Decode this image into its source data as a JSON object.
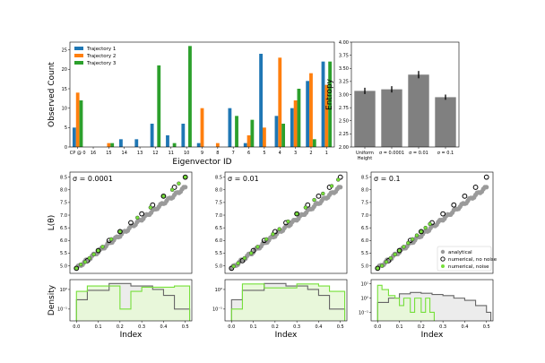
{
  "chart_data": [
    {
      "id": "bar-top",
      "type": "bar",
      "categories": [
        "CP @ 0",
        "16",
        "15",
        "14",
        "13",
        "12",
        "11",
        "10",
        "9",
        "8",
        "7",
        "6",
        "5",
        "4",
        "3",
        "2",
        "1"
      ],
      "series": [
        {
          "name": "Trajectory 1",
          "color": "#1f77b4",
          "values": [
            5,
            0,
            0,
            2,
            2,
            6,
            3,
            6,
            1,
            0,
            10,
            1,
            24,
            8,
            10,
            17,
            22
          ]
        },
        {
          "name": "Trajectory 2",
          "color": "#ff7f0e",
          "values": [
            14,
            0,
            1,
            0,
            0,
            0,
            0,
            0,
            10,
            1,
            0,
            3,
            5,
            23,
            12,
            19,
            16
          ]
        },
        {
          "name": "Trajectory 3",
          "color": "#2ca02c",
          "values": [
            12,
            0,
            1,
            0,
            0,
            21,
            1,
            26,
            0,
            0,
            8,
            7,
            0,
            6,
            15,
            2,
            22
          ]
        }
      ],
      "ylabel": "Observed Count",
      "xlabel": "Eigenvector ID",
      "ylim": [
        0,
        27
      ],
      "yticks": [
        0,
        5,
        10,
        15,
        20,
        25
      ],
      "legend": "top-left"
    },
    {
      "id": "bar-entropy",
      "type": "bar",
      "categories": [
        "Uniform\nHeight",
        "σ = 0.0001",
        "σ = 0.01",
        "σ = 0.1"
      ],
      "values": [
        3.07,
        3.1,
        3.38,
        2.95
      ],
      "errors": [
        0.06,
        0.06,
        0.07,
        0.05
      ],
      "color": "#808080",
      "ylabel": "Entropy",
      "ylim": [
        2.0,
        4.0
      ],
      "yticks": [
        "2.00",
        "2.25",
        "2.50",
        "2.75",
        "3.00",
        "3.25",
        "3.50",
        "3.75",
        "4.00"
      ]
    },
    {
      "id": "scatter-1",
      "type": "scatter",
      "annotation": "σ = 0.0001",
      "ylabel": "L(θ)",
      "xlim": [
        -0.03,
        0.53
      ],
      "ylim": [
        4.7,
        8.7
      ],
      "yticks": [
        "5.0",
        "5.5",
        "6.0",
        "6.5",
        "7.0",
        "7.5",
        "8.0",
        "8.5"
      ],
      "numerical_no_noise": [
        [
          0.0,
          4.9
        ],
        [
          0.05,
          5.2
        ],
        [
          0.1,
          5.6
        ],
        [
          0.15,
          6.0
        ],
        [
          0.2,
          6.35
        ],
        [
          0.25,
          6.7
        ],
        [
          0.3,
          7.05
        ],
        [
          0.35,
          7.4
        ],
        [
          0.4,
          7.75
        ],
        [
          0.45,
          8.1
        ],
        [
          0.5,
          8.5
        ]
      ],
      "numerical_noise": [
        [
          0.0,
          4.9
        ],
        [
          0.02,
          5.05
        ],
        [
          0.04,
          5.15
        ],
        [
          0.06,
          5.3
        ],
        [
          0.08,
          5.45
        ],
        [
          0.1,
          5.6
        ],
        [
          0.12,
          5.75
        ],
        [
          0.16,
          6.05
        ],
        [
          0.2,
          6.35
        ],
        [
          0.28,
          6.9
        ],
        [
          0.34,
          7.3
        ],
        [
          0.4,
          7.75
        ],
        [
          0.44,
          8.0
        ],
        [
          0.47,
          8.25
        ],
        [
          0.5,
          8.5
        ]
      ]
    },
    {
      "id": "scatter-2",
      "type": "scatter",
      "annotation": "σ = 0.01",
      "xlim": [
        -0.03,
        0.53
      ],
      "ylim": [
        4.7,
        8.7
      ],
      "yticks": [
        "5.0",
        "5.5",
        "6.0",
        "6.5",
        "7.0",
        "7.5",
        "8.0",
        "8.5"
      ],
      "numerical_no_noise": [
        [
          0.0,
          4.9
        ],
        [
          0.05,
          5.2
        ],
        [
          0.1,
          5.6
        ],
        [
          0.15,
          6.0
        ],
        [
          0.2,
          6.35
        ],
        [
          0.25,
          6.7
        ],
        [
          0.3,
          7.05
        ],
        [
          0.35,
          7.4
        ],
        [
          0.4,
          7.75
        ],
        [
          0.45,
          8.1
        ],
        [
          0.5,
          8.5
        ]
      ],
      "numerical_noise": [
        [
          0.01,
          4.98
        ],
        [
          0.03,
          5.1
        ],
        [
          0.06,
          5.3
        ],
        [
          0.09,
          5.5
        ],
        [
          0.12,
          5.75
        ],
        [
          0.16,
          6.05
        ],
        [
          0.19,
          6.25
        ],
        [
          0.22,
          6.45
        ],
        [
          0.26,
          6.75
        ],
        [
          0.3,
          7.05
        ],
        [
          0.34,
          7.3
        ],
        [
          0.38,
          7.6
        ],
        [
          0.42,
          7.85
        ],
        [
          0.46,
          8.15
        ],
        [
          0.49,
          8.4
        ]
      ]
    },
    {
      "id": "scatter-3",
      "type": "scatter",
      "annotation": "σ = 0.1",
      "xlim": [
        -0.03,
        0.53
      ],
      "ylim": [
        4.7,
        8.7
      ],
      "yticks": [
        "5.0",
        "5.5",
        "6.0",
        "6.5",
        "7.0",
        "7.5",
        "8.0",
        "8.5"
      ],
      "numerical_no_noise": [
        [
          0.0,
          4.9
        ],
        [
          0.05,
          5.2
        ],
        [
          0.1,
          5.6
        ],
        [
          0.15,
          6.0
        ],
        [
          0.2,
          6.35
        ],
        [
          0.25,
          6.7
        ],
        [
          0.3,
          7.05
        ],
        [
          0.35,
          7.4
        ],
        [
          0.4,
          7.75
        ],
        [
          0.45,
          8.1
        ],
        [
          0.5,
          8.5
        ]
      ],
      "numerical_noise": [
        [
          0.0,
          4.9
        ],
        [
          0.02,
          5.0
        ],
        [
          0.04,
          5.15
        ],
        [
          0.06,
          5.3
        ],
        [
          0.08,
          5.45
        ],
        [
          0.1,
          5.6
        ],
        [
          0.12,
          5.75
        ],
        [
          0.14,
          5.9
        ],
        [
          0.16,
          6.05
        ],
        [
          0.18,
          6.2
        ],
        [
          0.2,
          6.35
        ],
        [
          0.22,
          6.5
        ],
        [
          0.24,
          6.65
        ]
      ],
      "legend": {
        "position": "bottom-right",
        "entries": [
          "analytical",
          "numerical, no noise",
          "numerical, noise"
        ]
      }
    },
    {
      "id": "density-1",
      "type": "area",
      "xlabel": "Index",
      "ylabel": "Density",
      "xlim": [
        -0.03,
        0.53
      ],
      "xticks": [
        "0.0",
        "0.1",
        "0.2",
        "0.3",
        "0.4",
        "0.5"
      ],
      "yticks": [
        "10⁰",
        "10⁻¹"
      ],
      "gray_steps": [
        [
          0,
          0.3
        ],
        [
          0.05,
          0.9
        ],
        [
          0.15,
          2.0
        ],
        [
          0.25,
          1.5
        ],
        [
          0.35,
          1.0
        ],
        [
          0.4,
          0.5
        ],
        [
          0.45,
          0.1
        ],
        [
          0.5,
          0.1
        ]
      ],
      "green_steps": [
        [
          0,
          0.8
        ],
        [
          0.05,
          1.5
        ],
        [
          0.2,
          0.1
        ],
        [
          0.25,
          0.8
        ],
        [
          0.3,
          1.3
        ],
        [
          0.45,
          1.5
        ],
        [
          0.5,
          1.5
        ]
      ]
    },
    {
      "id": "density-2",
      "type": "area",
      "xlabel": "Index",
      "xlim": [
        -0.03,
        0.53
      ],
      "xticks": [
        "0.0",
        "0.1",
        "0.2",
        "0.3",
        "0.4",
        "0.5"
      ],
      "yticks": [
        "10⁰",
        "10⁻¹"
      ],
      "gray_steps": [
        [
          0,
          0.3
        ],
        [
          0.05,
          0.9
        ],
        [
          0.15,
          2.0
        ],
        [
          0.25,
          1.5
        ],
        [
          0.35,
          1.0
        ],
        [
          0.4,
          0.5
        ],
        [
          0.45,
          0.1
        ],
        [
          0.5,
          0.1
        ]
      ],
      "green_steps": [
        [
          0,
          0.1
        ],
        [
          0.05,
          1.9
        ],
        [
          0.15,
          1.2
        ],
        [
          0.3,
          1.9
        ],
        [
          0.4,
          1.5
        ],
        [
          0.45,
          0.8
        ],
        [
          0.5,
          0.8
        ]
      ]
    },
    {
      "id": "density-3",
      "type": "area",
      "xlabel": "Index",
      "xlim": [
        -0.03,
        0.53
      ],
      "xticks": [
        "0.0",
        "0.1",
        "0.2",
        "0.3",
        "0.4",
        "0.5"
      ],
      "yticks": [
        "10¹",
        "10⁰",
        "10⁻¹"
      ],
      "gray_steps": [
        [
          0,
          0.5
        ],
        [
          0.05,
          1.0
        ],
        [
          0.1,
          2.0
        ],
        [
          0.15,
          2.5
        ],
        [
          0.2,
          2.2
        ],
        [
          0.25,
          1.8
        ],
        [
          0.3,
          1.5
        ],
        [
          0.35,
          1.0
        ],
        [
          0.4,
          0.7
        ],
        [
          0.45,
          0.3
        ],
        [
          0.5,
          0.1
        ]
      ],
      "green_steps": [
        [
          0,
          8.0
        ],
        [
          0.02,
          4.0
        ],
        [
          0.05,
          1.5
        ],
        [
          0.08,
          1.0
        ],
        [
          0.1,
          0.3
        ],
        [
          0.12,
          1.0
        ],
        [
          0.15,
          0.1
        ],
        [
          0.17,
          1.0
        ],
        [
          0.2,
          0.1
        ],
        [
          0.22,
          1.0
        ],
        [
          0.24,
          0.1
        ]
      ]
    }
  ]
}
